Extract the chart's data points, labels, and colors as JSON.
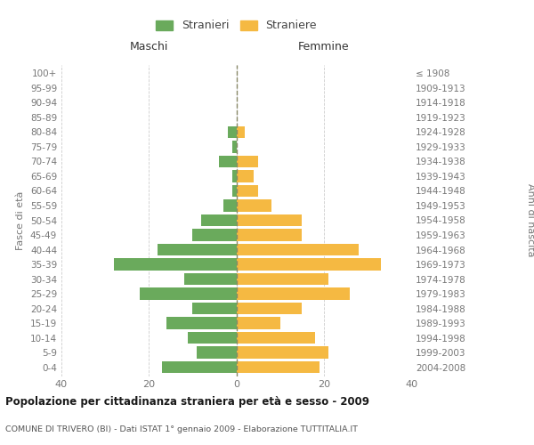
{
  "age_groups": [
    "0-4",
    "5-9",
    "10-14",
    "15-19",
    "20-24",
    "25-29",
    "30-34",
    "35-39",
    "40-44",
    "45-49",
    "50-54",
    "55-59",
    "60-64",
    "65-69",
    "70-74",
    "75-79",
    "80-84",
    "85-89",
    "90-94",
    "95-99",
    "100+"
  ],
  "birth_years": [
    "2004-2008",
    "1999-2003",
    "1994-1998",
    "1989-1993",
    "1984-1988",
    "1979-1983",
    "1974-1978",
    "1969-1973",
    "1964-1968",
    "1959-1963",
    "1954-1958",
    "1949-1953",
    "1944-1948",
    "1939-1943",
    "1934-1938",
    "1929-1933",
    "1924-1928",
    "1919-1923",
    "1914-1918",
    "1909-1913",
    "≤ 1908"
  ],
  "males": [
    17,
    9,
    11,
    16,
    10,
    22,
    12,
    28,
    18,
    10,
    8,
    3,
    1,
    1,
    4,
    1,
    2,
    0,
    0,
    0,
    0
  ],
  "females": [
    19,
    21,
    18,
    10,
    15,
    26,
    21,
    33,
    28,
    15,
    15,
    8,
    5,
    4,
    5,
    0,
    2,
    0,
    0,
    0,
    0
  ],
  "male_color": "#6aaa5c",
  "female_color": "#f5b942",
  "bar_height": 0.82,
  "xlim": 40,
  "title_main": "Popolazione per cittadinanza straniera per età e sesso - 2009",
  "title_sub": "COMUNE DI TRIVERO (BI) - Dati ISTAT 1° gennaio 2009 - Elaborazione TUTTITALIA.IT",
  "ylabel_left": "Fasce di età",
  "ylabel_right": "Anni di nascita",
  "label_maschi": "Maschi",
  "label_femmine": "Femmine",
  "legend_stranieri": "Stranieri",
  "legend_straniere": "Straniere",
  "bg_color": "#ffffff",
  "grid_color": "#cccccc",
  "text_color": "#777777",
  "center_line_color": "#888866",
  "xtick_labels": [
    "40",
    "20",
    "0",
    "20",
    "40"
  ],
  "xtick_vals": [
    -40,
    -20,
    0,
    20,
    40
  ]
}
